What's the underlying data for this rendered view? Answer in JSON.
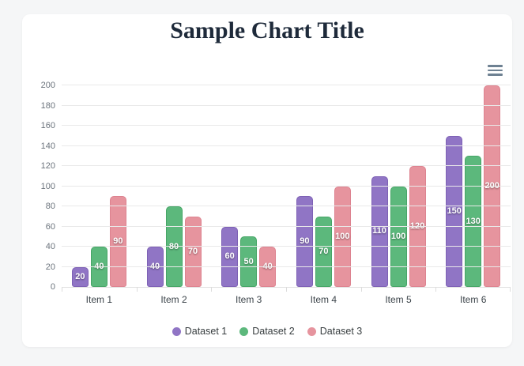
{
  "page": {
    "background_color": "#f5f6f7",
    "card_background_color": "#ffffff"
  },
  "header": {
    "title": "Sample Chart Title",
    "title_color": "#1e2a3a"
  },
  "toolbar": {
    "menu_icon": "hamburger-menu-icon",
    "icon_color": "#6e8192"
  },
  "chart_data": {
    "type": "bar",
    "title": "Sample Chart Title",
    "categories": [
      "Item 1",
      "Item 2",
      "Item 3",
      "Item 4",
      "Item 5",
      "Item 6"
    ],
    "series": [
      {
        "name": "Dataset 1",
        "color": "#9075c5",
        "border_color": "#7e61b5",
        "values": [
          20,
          40,
          60,
          90,
          110,
          150
        ]
      },
      {
        "name": "Dataset 2",
        "color": "#5cb87c",
        "border_color": "#46a566",
        "values": [
          40,
          80,
          50,
          70,
          100,
          130
        ]
      },
      {
        "name": "Dataset 3",
        "color": "#e6949e",
        "border_color": "#dd8390",
        "values": [
          90,
          70,
          40,
          100,
          120,
          200
        ]
      }
    ],
    "ylim": [
      0,
      200
    ],
    "ytick_step": 20,
    "xlabel": "",
    "ylabel": "",
    "grid": true,
    "grid_color": "#e9e9e9",
    "value_labels": true,
    "value_label_color": "#ffffff",
    "y_tick_label_color": "#6b737c",
    "x_tick_label_color": "#3c444a",
    "legend_position": "bottom"
  }
}
